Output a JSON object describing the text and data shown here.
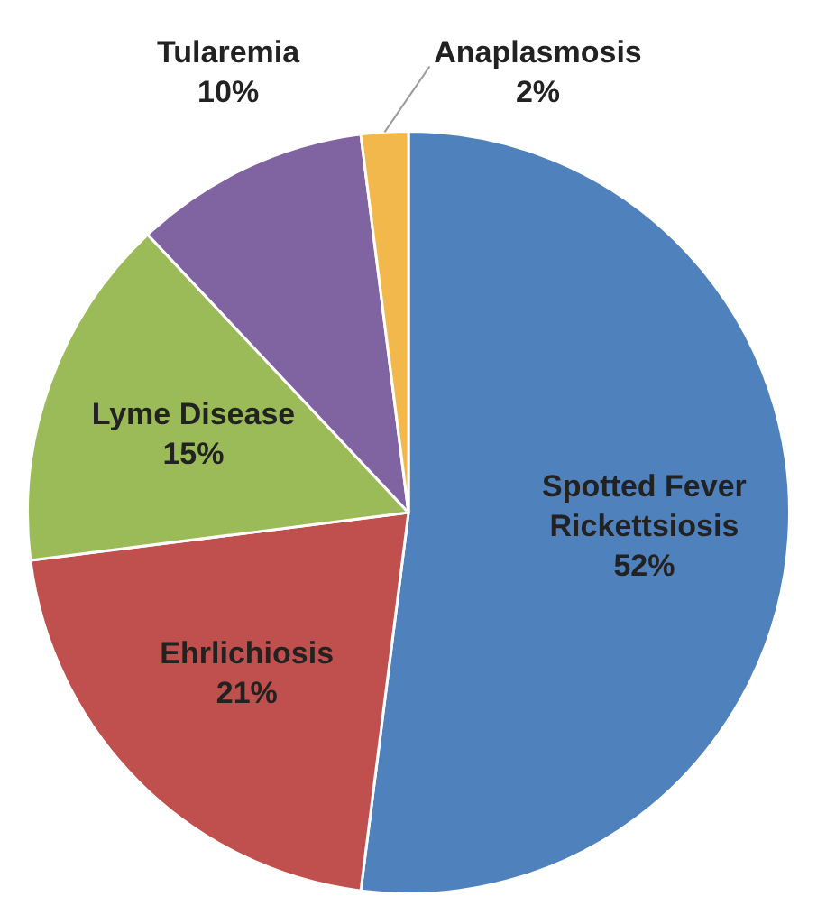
{
  "chart_data": {
    "type": "pie",
    "categories": [
      "Spotted Fever Rickettsiosis",
      "Ehrlichiosis",
      "Lyme Disease",
      "Tularemia",
      "Anaplasmosis"
    ],
    "values": [
      52,
      21,
      15,
      10,
      2
    ],
    "value_labels": [
      "52%",
      "21%",
      "15%",
      "10%",
      "2%"
    ],
    "colors": [
      "#4f81bd",
      "#c0504d",
      "#9bbb59",
      "#8064a2",
      "#f2b84b"
    ],
    "legend": false
  }
}
